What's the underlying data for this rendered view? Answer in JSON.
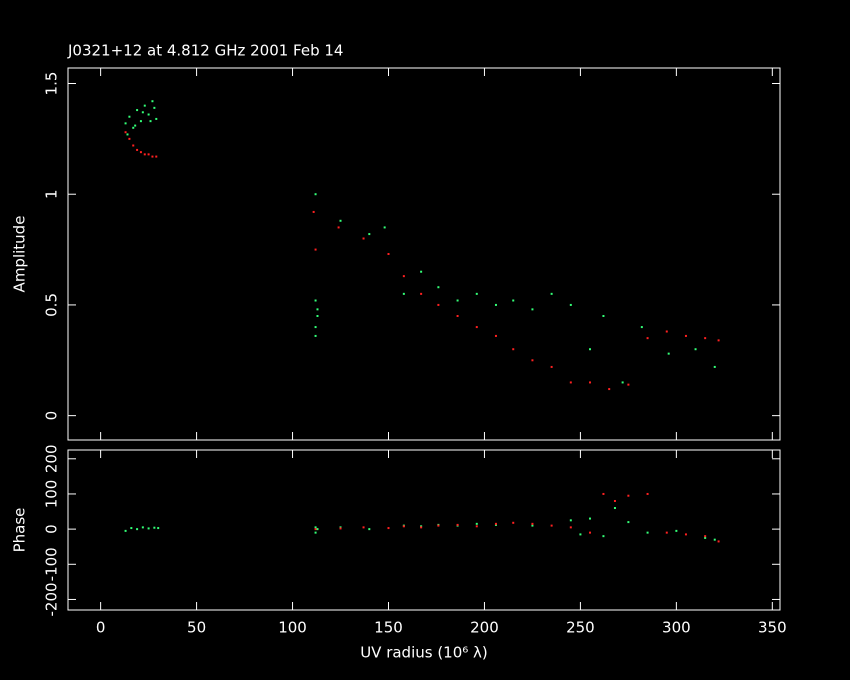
{
  "chart_data": [
    {
      "type": "scatter",
      "title": "J0321+12 at 4.812 GHz 2001 Feb 14",
      "ylabel": "Amplitude",
      "xlim": [
        -17,
        354
      ],
      "xticks": [
        0,
        50,
        100,
        150,
        200,
        250,
        300,
        350
      ],
      "ylim": [
        -0.11,
        1.57
      ],
      "yticks": [
        0,
        0.5,
        1,
        1.5
      ],
      "series": [
        {
          "color": "#33ff77",
          "x": [
            13,
            15,
            17,
            19,
            21,
            23,
            25,
            27,
            29,
            14,
            18,
            22,
            26,
            28,
            112,
            112,
            113,
            112,
            113,
            112,
            125,
            140,
            148,
            158,
            167,
            176,
            186,
            196,
            206,
            215,
            225,
            235,
            245,
            255,
            262,
            272,
            282,
            296,
            310,
            320
          ],
          "y": [
            1.32,
            1.35,
            1.3,
            1.38,
            1.33,
            1.4,
            1.36,
            1.42,
            1.34,
            1.27,
            1.31,
            1.37,
            1.33,
            1.39,
            1.0,
            0.52,
            0.45,
            0.4,
            0.48,
            0.36,
            0.88,
            0.82,
            0.85,
            0.55,
            0.65,
            0.58,
            0.52,
            0.55,
            0.5,
            0.52,
            0.48,
            0.55,
            0.5,
            0.3,
            0.45,
            0.15,
            0.4,
            0.28,
            0.3,
            0.22
          ]
        },
        {
          "color": "#ff2020",
          "x": [
            13,
            15,
            17,
            19,
            21,
            23,
            25,
            27,
            29,
            111,
            112,
            124,
            137,
            150,
            158,
            167,
            176,
            186,
            196,
            206,
            215,
            225,
            235,
            245,
            255,
            265,
            275,
            285,
            295,
            305,
            315,
            322
          ],
          "y": [
            1.28,
            1.25,
            1.22,
            1.2,
            1.19,
            1.18,
            1.18,
            1.17,
            1.17,
            0.92,
            0.75,
            0.85,
            0.8,
            0.73,
            0.63,
            0.55,
            0.5,
            0.45,
            0.4,
            0.36,
            0.3,
            0.25,
            0.22,
            0.15,
            0.15,
            0.12,
            0.14,
            0.35,
            0.38,
            0.36,
            0.35,
            0.34
          ]
        }
      ]
    },
    {
      "type": "scatter",
      "ylabel": "Phase",
      "xlabel": "UV radius  (10⁶ λ)",
      "xlim": [
        -17,
        354
      ],
      "xticks": [
        0,
        50,
        100,
        150,
        200,
        250,
        300,
        350
      ],
      "ylim": [
        -230,
        225
      ],
      "yticks": [
        -200,
        -100,
        0,
        100,
        200
      ],
      "series": [
        {
          "color": "#33ff77",
          "x": [
            13,
            16,
            19,
            22,
            25,
            28,
            30,
            112,
            112,
            113,
            125,
            140,
            158,
            167,
            176,
            186,
            196,
            206,
            225,
            245,
            250,
            255,
            262,
            268,
            275,
            285,
            300,
            315,
            320
          ],
          "y": [
            -5,
            3,
            0,
            5,
            2,
            4,
            3,
            -10,
            5,
            0,
            5,
            0,
            10,
            8,
            12,
            10,
            15,
            12,
            10,
            25,
            -15,
            30,
            -20,
            60,
            20,
            -10,
            -5,
            -25,
            -30
          ]
        },
        {
          "color": "#ff2020",
          "x": [
            112,
            125,
            137,
            150,
            158,
            167,
            176,
            186,
            196,
            206,
            215,
            225,
            235,
            245,
            255,
            262,
            268,
            275,
            285,
            295,
            305,
            315,
            322
          ],
          "y": [
            0,
            2,
            5,
            3,
            8,
            5,
            10,
            12,
            8,
            15,
            18,
            15,
            10,
            5,
            -10,
            100,
            80,
            95,
            100,
            -10,
            -15,
            -20,
            -35
          ]
        }
      ]
    }
  ]
}
